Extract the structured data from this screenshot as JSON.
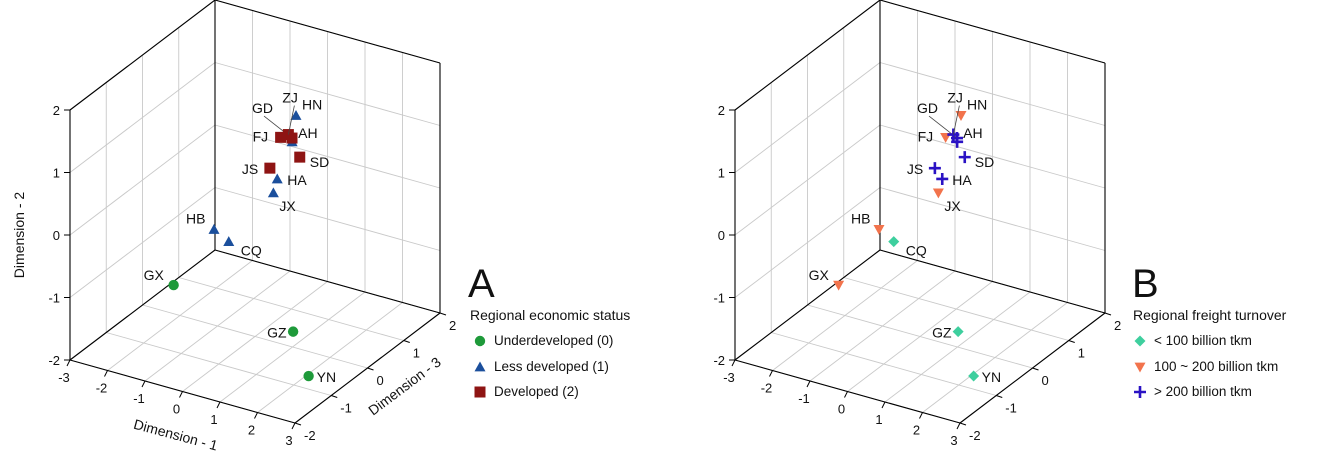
{
  "chart_data": [
    {
      "type": "scatter",
      "panel": "A",
      "xlabel": "Dimension - 1",
      "ylabel": "Dimension - 2",
      "zlabel": "Dimension - 3",
      "xlim": [
        -3,
        3
      ],
      "ylim": [
        -2,
        2
      ],
      "zlim": [
        -2,
        2
      ],
      "x_ticks": [
        "-3",
        "-2",
        "-1",
        "0",
        "1",
        "2",
        "3"
      ],
      "y_ticks": [
        "-2",
        "-1",
        "0",
        "1",
        "2"
      ],
      "z_ticks": [
        "-2",
        "-1",
        "0",
        "1",
        "2"
      ],
      "grid": true,
      "legend_title": "Regional economic status",
      "legend_position": "right",
      "series": [
        {
          "name": "Underdeveloped (0)",
          "marker": "circle",
          "color": "#1e9a3a",
          "points": [
            {
              "label": "GX",
              "x": -1.3,
              "y": -1.0,
              "z": -0.9
            },
            {
              "label": "GZ",
              "x": 1.5,
              "y": -1.45,
              "z": -0.5
            },
            {
              "label": "YN",
              "x": 2.3,
              "y": -1.85,
              "z": -0.9
            }
          ]
        },
        {
          "name": "Less developed (1)",
          "marker": "triangle",
          "color": "#1b4f9c",
          "points": [
            {
              "label": "HB",
              "x": -0.9,
              "y": -0.35,
              "z": -0.2
            },
            {
              "label": "CQ",
              "x": -0.7,
              "y": -0.6,
              "z": 0.0
            },
            {
              "label": "HN",
              "x": 0.9,
              "y": 1.6,
              "z": 0.2
            },
            {
              "label": "AH",
              "x": 0.7,
              "y": 1.1,
              "z": 0.3
            },
            {
              "label": "HA",
              "x": 0.4,
              "y": 0.5,
              "z": 0.2
            },
            {
              "label": "JX",
              "x": 0.2,
              "y": 0.2,
              "z": 0.3
            }
          ]
        },
        {
          "name": "Developed (2)",
          "marker": "square",
          "color": "#8e1413",
          "points": [
            {
              "label": "GD",
              "x": 0.6,
              "y": 1.1,
              "z": 0.4
            },
            {
              "label": "ZJ",
              "x": 0.6,
              "y": 1.2,
              "z": 0.3
            },
            {
              "label": "FJ",
              "x": 0.2,
              "y": 1.0,
              "z": 0.5
            },
            {
              "label": "JS",
              "x": 0.3,
              "y": 0.7,
              "z": 0.1
            },
            {
              "label": "SD",
              "x": 1.0,
              "y": 0.95,
              "z": 0.2
            }
          ]
        }
      ]
    },
    {
      "type": "scatter",
      "panel": "B",
      "xlim": [
        -3,
        3
      ],
      "ylim": [
        -2,
        2
      ],
      "zlim": [
        -2,
        2
      ],
      "x_ticks": [
        "-3",
        "-2",
        "-1",
        "0",
        "1",
        "2",
        "3"
      ],
      "y_ticks": [
        "-2",
        "-1",
        "0",
        "1",
        "2"
      ],
      "z_ticks": [
        "-2",
        "-1",
        "0",
        "1",
        "2"
      ],
      "grid": true,
      "legend_title": "Regional freight turnover",
      "legend_position": "right",
      "series": [
        {
          "name": "< 100 billion tkm",
          "marker": "diamond",
          "color": "#3ecf9e",
          "points": [
            {
              "label": "CQ",
              "x": -0.7,
              "y": -0.6,
              "z": 0.0
            },
            {
              "label": "GZ",
              "x": 1.5,
              "y": -1.45,
              "z": -0.5
            },
            {
              "label": "YN",
              "x": 2.3,
              "y": -1.85,
              "z": -0.9
            }
          ]
        },
        {
          "name": "100 ~ 200 billion tkm",
          "marker": "triangle-down",
          "color": "#f2734c",
          "points": [
            {
              "label": "GX",
              "x": -1.3,
              "y": -1.0,
              "z": -0.9
            },
            {
              "label": "HB",
              "x": -0.9,
              "y": -0.35,
              "z": -0.2
            },
            {
              "label": "HN",
              "x": 0.9,
              "y": 1.6,
              "z": 0.2
            },
            {
              "label": "FJ",
              "x": 0.2,
              "y": 1.0,
              "z": 0.5
            },
            {
              "label": "JX",
              "x": 0.2,
              "y": 0.2,
              "z": 0.3
            }
          ]
        },
        {
          "name": "> 200 billion tkm",
          "marker": "plus",
          "color": "#2a12c4",
          "points": [
            {
              "label": "GD",
              "x": 0.6,
              "y": 1.1,
              "z": 0.4
            },
            {
              "label": "ZJ",
              "x": 0.6,
              "y": 1.2,
              "z": 0.3
            },
            {
              "label": "AH",
              "x": 0.7,
              "y": 1.1,
              "z": 0.3
            },
            {
              "label": "SD",
              "x": 1.0,
              "y": 0.95,
              "z": 0.2
            },
            {
              "label": "JS",
              "x": 0.3,
              "y": 0.7,
              "z": 0.1
            },
            {
              "label": "HA",
              "x": 0.4,
              "y": 0.5,
              "z": 0.2
            }
          ]
        }
      ]
    }
  ]
}
